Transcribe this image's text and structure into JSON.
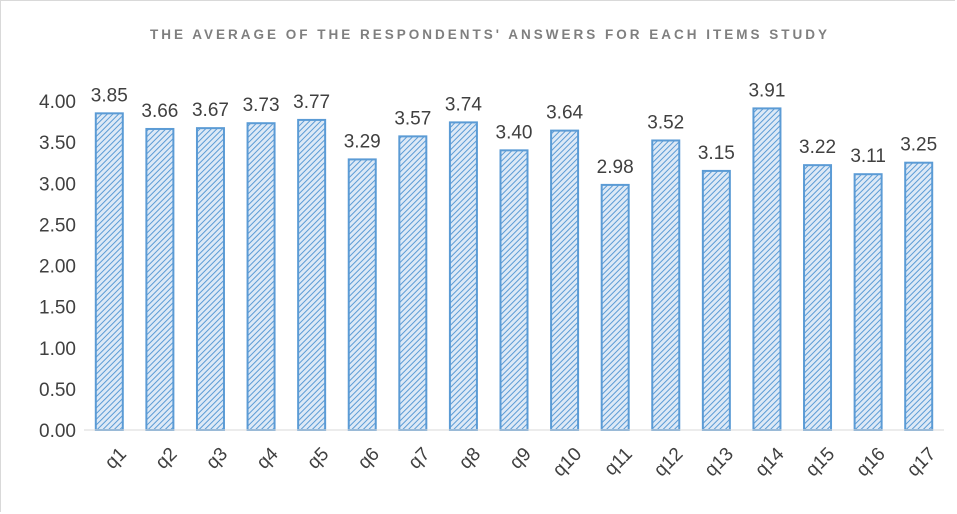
{
  "chart_data": {
    "type": "bar",
    "title": "THE AVERAGE OF THE RESPONDENTS' ANSWERS FOR EACH ITEMS  STUDY",
    "xlabel": "",
    "ylabel": "",
    "categories": [
      "q1",
      "q2",
      "q3",
      "q4",
      "q5",
      "q6",
      "q7",
      "q8",
      "q9",
      "q10",
      "q11",
      "q12",
      "q13",
      "q14",
      "q15",
      "q16",
      "q17"
    ],
    "values": [
      3.85,
      3.66,
      3.67,
      3.73,
      3.77,
      3.29,
      3.57,
      3.74,
      3.4,
      3.64,
      2.98,
      3.52,
      3.15,
      3.91,
      3.22,
      3.11,
      3.25
    ],
    "data_labels": [
      "3.85",
      "3.66",
      "3.67",
      "3.73",
      "3.77",
      "3.29",
      "3.57",
      "3.74",
      "3.40",
      "3.64",
      "2.98",
      "3.52",
      "3.15",
      "3.91",
      "3.22",
      "3.11",
      "3.25"
    ],
    "ylim": [
      0,
      4
    ],
    "yticks": [
      "0.00",
      "0.50",
      "1.00",
      "1.50",
      "2.00",
      "2.50",
      "3.00",
      "3.50",
      "4.00"
    ],
    "grid": false,
    "legend": "none",
    "bar_pattern": "diagonal-hatch",
    "colors": {
      "bar_stroke": "#5b9bd5",
      "bar_hatch": "#5b9bd5",
      "bar_fill": "#dde9f6",
      "axis": "#d9d9d9",
      "text": "#404040",
      "title": "#7f7f7f"
    }
  }
}
